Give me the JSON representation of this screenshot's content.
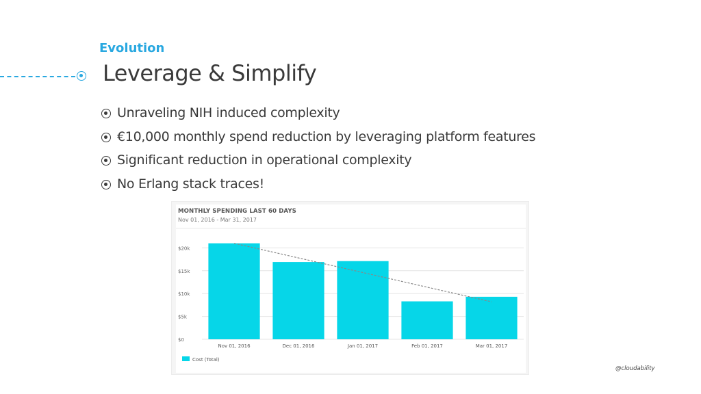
{
  "slide": {
    "section": "Evolution",
    "title": "Leverage & Simplify",
    "bullets": [
      "Unraveling NIH induced complexity",
      "€10,000 monthly spend reduction by leveraging platform features",
      "Significant reduction in operational complexity",
      "No Erlang stack traces!"
    ],
    "watermark": "@cloudability"
  },
  "colors": {
    "accent": "#29a8e0",
    "bar": "#06d6e8",
    "text": "#3a3a3a",
    "trend": "#888888"
  },
  "chart_data": {
    "type": "bar",
    "title": "MONTHLY SPENDING LAST 60 DAYS",
    "subtitle": "Nov 01, 2016 - Mar 31, 2017",
    "categories": [
      "Nov 01, 2016",
      "Dec 01, 2016",
      "Jan 01, 2017",
      "Feb 01, 2017",
      "Mar 01, 2017"
    ],
    "series": [
      {
        "name": "Cost (Total)",
        "values": [
          21000,
          16900,
          17100,
          8300,
          9300
        ]
      }
    ],
    "y_ticks": [
      {
        "value": 0,
        "label": "$0"
      },
      {
        "value": 5000,
        "label": "$5k"
      },
      {
        "value": 10000,
        "label": "$10k"
      },
      {
        "value": 15000,
        "label": "$15k"
      },
      {
        "value": 20000,
        "label": "$20k"
      }
    ],
    "ylim": [
      0,
      22000
    ],
    "trendline": {
      "start": 21000,
      "end": 8200
    },
    "grid": true,
    "legend": "bottom-left"
  }
}
